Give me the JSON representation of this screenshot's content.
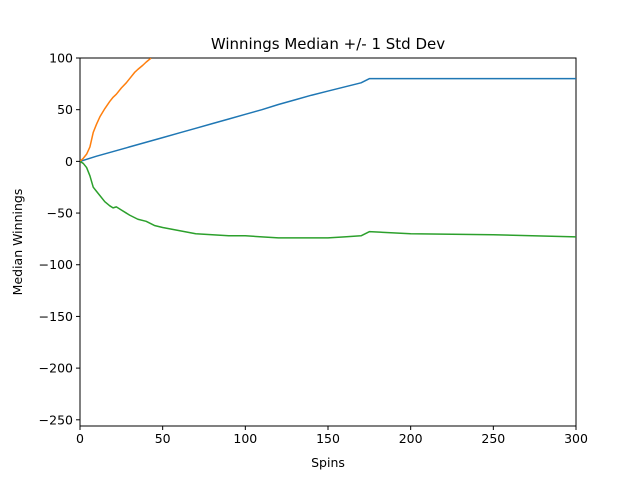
{
  "chart_data": {
    "type": "line",
    "title": "Winnings Median +/- 1 Std Dev",
    "xlabel": "Spins",
    "ylabel": "Median Winnings",
    "xlim": [
      0,
      300
    ],
    "ylim": [
      -256,
      100
    ],
    "xticks": [
      0,
      50,
      100,
      150,
      200,
      250,
      300
    ],
    "yticks": [
      -250,
      -200,
      -150,
      -100,
      -50,
      0,
      50,
      100
    ],
    "grid": false,
    "legend": "none",
    "series": [
      {
        "color": "#1f77b4",
        "x": [
          0,
          10,
          20,
          30,
          40,
          50,
          60,
          70,
          80,
          90,
          100,
          110,
          120,
          130,
          140,
          150,
          160,
          170,
          175,
          200,
          250,
          300
        ],
        "y": [
          0,
          5,
          9.5,
          14,
          18.5,
          23,
          27.5,
          32,
          36.5,
          41,
          45.5,
          50,
          55,
          59.5,
          64,
          68,
          72,
          76,
          80,
          80,
          80,
          80
        ]
      },
      {
        "color": "#ff7f0e",
        "x": [
          0,
          2,
          4,
          6,
          8,
          10,
          12,
          15,
          18,
          20,
          22,
          25,
          28,
          30,
          33,
          35,
          38,
          40,
          43
        ],
        "y": [
          0,
          3,
          7,
          14,
          28,
          36,
          43,
          51,
          58,
          62,
          65,
          71,
          76,
          80,
          86,
          89,
          93,
          96,
          100
        ]
      },
      {
        "color": "#2ca02c",
        "x": [
          0,
          2,
          4,
          6,
          8,
          10,
          12,
          15,
          18,
          20,
          22,
          25,
          28,
          30,
          35,
          40,
          45,
          50,
          60,
          70,
          80,
          90,
          100,
          110,
          120,
          130,
          140,
          150,
          160,
          170,
          175,
          200,
          250,
          300
        ],
        "y": [
          0,
          -2,
          -6,
          -14,
          -25,
          -29,
          -33,
          -39,
          -43,
          -45,
          -44,
          -47,
          -50,
          -52,
          -56,
          -58,
          -62,
          -64,
          -67,
          -70,
          -71,
          -72,
          -72,
          -73,
          -74,
          -74,
          -74,
          -74,
          -73,
          -72,
          -68,
          -70,
          -71,
          -73
        ]
      }
    ]
  }
}
